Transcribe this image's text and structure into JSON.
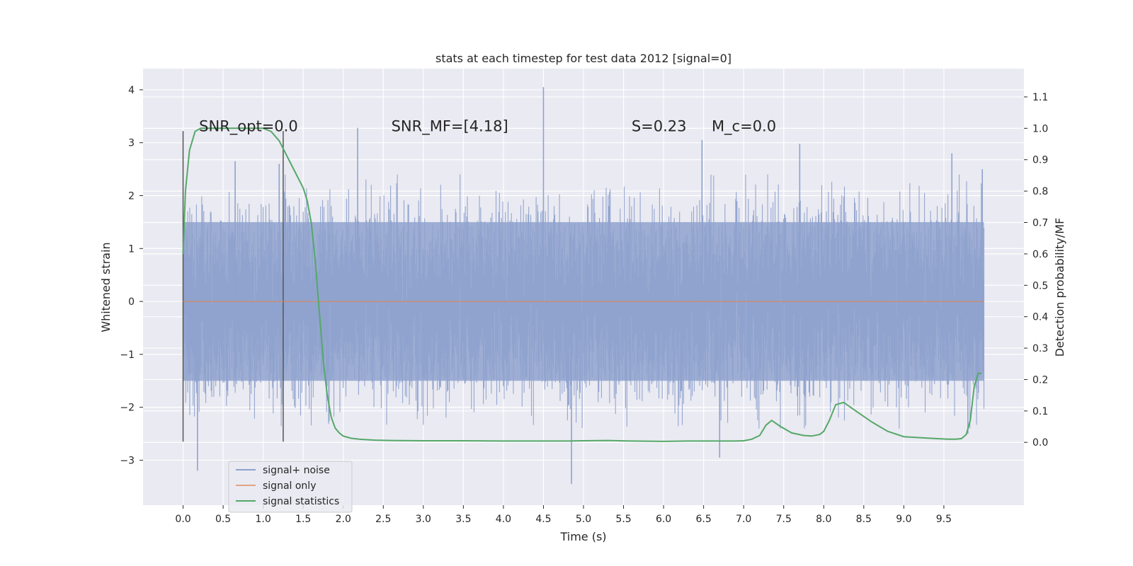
{
  "chart_data": {
    "type": "line",
    "title": "stats at each timestep for test data 2012 [signal=0]",
    "xlabel": "Time (s)",
    "ylabel_left": "Whitened strain",
    "ylabel_right": "Detection probability/MF",
    "xlim": [
      -0.5,
      10.5
    ],
    "ylim_left": [
      -3.85,
      4.4
    ],
    "ylim_right": [
      -0.2,
      1.19
    ],
    "x_ticks": [
      0.0,
      0.5,
      1.0,
      1.5,
      2.0,
      2.5,
      3.0,
      3.5,
      4.0,
      4.5,
      5.0,
      5.5,
      6.0,
      6.5,
      7.0,
      7.5,
      8.0,
      8.5,
      9.0,
      9.5
    ],
    "x_tick_labels": [
      "0.0",
      "0.5",
      "1.0",
      "1.5",
      "2.0",
      "2.5",
      "3.0",
      "3.5",
      "4.0",
      "4.5",
      "5.0",
      "5.5",
      "6.0",
      "6.5",
      "7.0",
      "7.5",
      "8.0",
      "8.5",
      "9.0",
      "9.5"
    ],
    "y_ticks_left": [
      -3,
      -2,
      -1,
      0,
      1,
      2,
      3,
      4
    ],
    "y_tick_labels_left": [
      "−3",
      "−2",
      "−1",
      "0",
      "1",
      "2",
      "3",
      "4"
    ],
    "y_ticks_right": [
      0.0,
      0.1,
      0.2,
      0.3,
      0.4,
      0.5,
      0.6,
      0.7,
      0.8,
      0.9,
      1.0,
      1.1
    ],
    "y_tick_labels_right": [
      "0.0",
      "0.1",
      "0.2",
      "0.3",
      "0.4",
      "0.5",
      "0.6",
      "0.7",
      "0.8",
      "0.9",
      "1.0",
      "1.1"
    ],
    "grid": true,
    "legend_position": "lower-left",
    "annotations": [
      {
        "text": "SNR_opt=0.0",
        "x": 0.2,
        "y": 3.3
      },
      {
        "text": "SNR_MF=[4.18]",
        "x": 2.6,
        "y": 3.3
      },
      {
        "text": "S=0.23",
        "x": 5.6,
        "y": 3.3
      },
      {
        "text": "M_c=0.0",
        "x": 6.6,
        "y": 3.3
      }
    ],
    "vlines": [
      {
        "x": 0.0,
        "ymin": -2.65,
        "ymax": 3.22
      },
      {
        "x": 1.25,
        "ymin": -2.65,
        "ymax": 3.22
      }
    ],
    "series": [
      {
        "name": "signal+ noise",
        "axis": "left",
        "color": "#8fa2ce",
        "style": "noise-band",
        "x_range": [
          0.0,
          10.0
        ],
        "typical_range": [
          -1.5,
          1.5
        ],
        "peaks": [
          {
            "x": 0.18,
            "y": -3.2
          },
          {
            "x": 0.65,
            "y": 2.65
          },
          {
            "x": 1.2,
            "y": 2.6
          },
          {
            "x": 2.18,
            "y": 3.28
          },
          {
            "x": 4.5,
            "y": 4.05
          },
          {
            "x": 4.85,
            "y": -3.45
          },
          {
            "x": 6.48,
            "y": 3.05
          },
          {
            "x": 7.7,
            "y": 2.98
          },
          {
            "x": 6.7,
            "y": -2.95
          },
          {
            "x": 9.6,
            "y": 2.8
          },
          {
            "x": 9.8,
            "y": -2.5
          },
          {
            "x": 9.98,
            "y": 2.5
          }
        ]
      },
      {
        "name": "signal only",
        "axis": "left",
        "color": "#dd8452",
        "x": [
          0.0,
          10.0
        ],
        "y": [
          0.0,
          0.0
        ]
      },
      {
        "name": "signal statistics",
        "axis": "right",
        "color": "#55a868",
        "x": [
          0.0,
          0.03,
          0.08,
          0.15,
          0.22,
          0.3,
          0.5,
          0.7,
          0.9,
          1.0,
          1.1,
          1.2,
          1.3,
          1.4,
          1.5,
          1.55,
          1.6,
          1.65,
          1.7,
          1.75,
          1.8,
          1.85,
          1.9,
          1.95,
          2.0,
          2.1,
          2.2,
          2.4,
          2.6,
          3.0,
          3.5,
          4.0,
          4.5,
          4.8,
          5.0,
          5.3,
          5.6,
          6.0,
          6.3,
          6.6,
          6.8,
          6.9,
          7.0,
          7.1,
          7.2,
          7.28,
          7.35,
          7.45,
          7.6,
          7.75,
          7.85,
          7.95,
          8.0,
          8.07,
          8.15,
          8.25,
          8.4,
          8.6,
          8.8,
          9.0,
          9.2,
          9.4,
          9.55,
          9.65,
          9.72,
          9.78,
          9.83,
          9.88,
          9.93,
          9.97
        ],
        "y": [
          0.6,
          0.8,
          0.93,
          0.99,
          1.0,
          1.0,
          1.0,
          1.0,
          1.0,
          1.0,
          0.99,
          0.96,
          0.91,
          0.86,
          0.81,
          0.77,
          0.7,
          0.58,
          0.42,
          0.26,
          0.15,
          0.08,
          0.045,
          0.03,
          0.02,
          0.013,
          0.01,
          0.007,
          0.006,
          0.005,
          0.005,
          0.004,
          0.004,
          0.004,
          0.005,
          0.006,
          0.004,
          0.003,
          0.004,
          0.004,
          0.004,
          0.004,
          0.005,
          0.01,
          0.022,
          0.055,
          0.07,
          0.052,
          0.03,
          0.022,
          0.02,
          0.025,
          0.035,
          0.07,
          0.12,
          0.127,
          0.1,
          0.065,
          0.035,
          0.018,
          0.015,
          0.012,
          0.01,
          0.01,
          0.012,
          0.025,
          0.07,
          0.18,
          0.22,
          0.22
        ]
      }
    ]
  }
}
